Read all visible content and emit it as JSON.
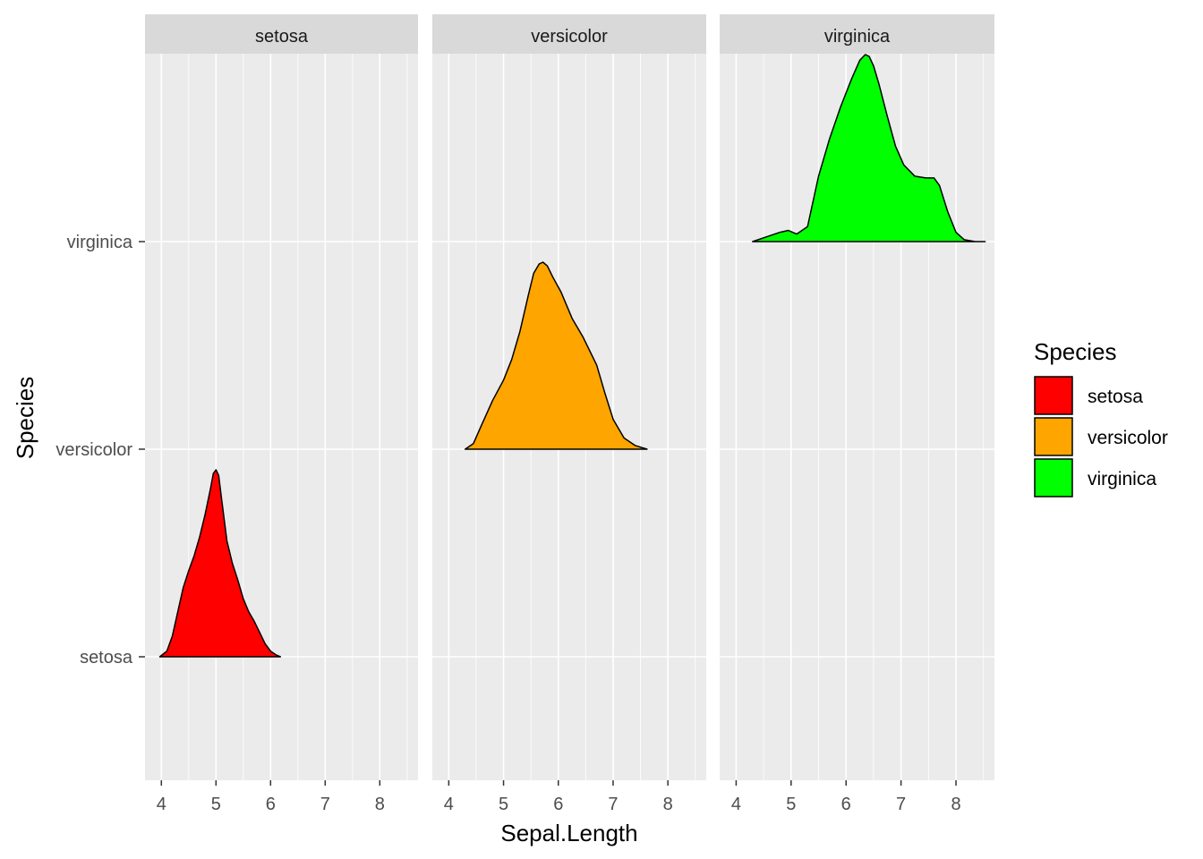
{
  "chart_data": {
    "type": "ridgeline",
    "xlabel": "Sepal.Length",
    "ylabel": "Species",
    "xlim": [
      3.7,
      8.7
    ],
    "x_ticks": [
      4,
      5,
      6,
      7,
      8
    ],
    "x_tick_labels": [
      "4",
      "5",
      "6",
      "7",
      "8"
    ],
    "y_categories": [
      "setosa",
      "versicolor",
      "virginica"
    ],
    "facets": [
      "setosa",
      "versicolor",
      "virginica"
    ],
    "legend": {
      "title": "Species",
      "position": "right",
      "items": [
        {
          "label": "setosa",
          "color": "#FF0000"
        },
        {
          "label": "versicolor",
          "color": "#FFA500"
        },
        {
          "label": "virginica",
          "color": "#00FF00"
        }
      ]
    },
    "grid": true,
    "series": [
      {
        "name": "setosa",
        "color": "#FF0000",
        "category": "setosa",
        "x": [
          3.97,
          4.1,
          4.2,
          4.3,
          4.4,
          4.5,
          4.6,
          4.7,
          4.8,
          4.9,
          4.95,
          5.0,
          5.05,
          5.1,
          5.2,
          5.3,
          5.4,
          5.5,
          5.6,
          5.7,
          5.8,
          5.9,
          6.0,
          6.1,
          6.18
        ],
        "density": [
          0.0,
          0.03,
          0.11,
          0.24,
          0.37,
          0.46,
          0.54,
          0.64,
          0.76,
          0.9,
          0.98,
          1.0,
          0.97,
          0.85,
          0.62,
          0.5,
          0.41,
          0.31,
          0.24,
          0.19,
          0.13,
          0.07,
          0.03,
          0.01,
          0.0
        ]
      },
      {
        "name": "versicolor",
        "color": "#FFA500",
        "category": "versicolor",
        "x": [
          4.3,
          4.45,
          4.6,
          4.8,
          5.0,
          5.15,
          5.3,
          5.45,
          5.55,
          5.65,
          5.72,
          5.8,
          5.9,
          6.05,
          6.25,
          6.45,
          6.7,
          6.85,
          7.0,
          7.2,
          7.4,
          7.62
        ],
        "density": [
          0.0,
          0.03,
          0.13,
          0.26,
          0.37,
          0.48,
          0.63,
          0.82,
          0.94,
          0.99,
          1.0,
          0.98,
          0.92,
          0.84,
          0.7,
          0.6,
          0.45,
          0.3,
          0.16,
          0.06,
          0.02,
          0.0
        ]
      },
      {
        "name": "virginica",
        "color": "#00FF00",
        "category": "virginica",
        "x": [
          4.3,
          4.6,
          4.8,
          4.95,
          5.1,
          5.3,
          5.5,
          5.7,
          5.9,
          6.1,
          6.25,
          6.35,
          6.42,
          6.5,
          6.6,
          6.75,
          6.9,
          7.05,
          7.25,
          7.45,
          7.6,
          7.7,
          7.85,
          8.0,
          8.15,
          8.35,
          8.53
        ],
        "density": [
          0.0,
          0.03,
          0.05,
          0.06,
          0.04,
          0.08,
          0.35,
          0.55,
          0.72,
          0.87,
          0.97,
          1.0,
          0.99,
          0.94,
          0.84,
          0.67,
          0.51,
          0.41,
          0.35,
          0.34,
          0.34,
          0.3,
          0.16,
          0.05,
          0.01,
          0.0,
          0.0
        ]
      }
    ]
  }
}
